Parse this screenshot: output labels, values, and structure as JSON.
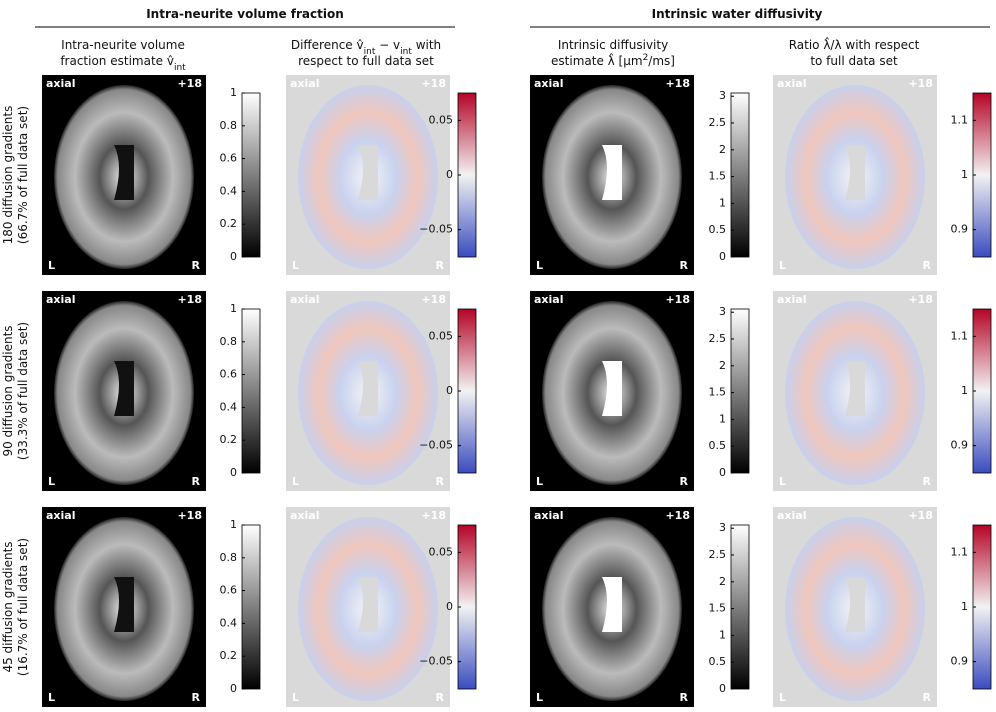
{
  "groups": [
    {
      "title": "Intra-neurite volume fraction"
    },
    {
      "title": "Intrinsic water diffusivity"
    }
  ],
  "columns": [
    {
      "header": [
        [
          {
            "text": "Intra-neurite volume"
          }
        ],
        [
          {
            "text": "fraction estimate v̂"
          },
          {
            "text": "int",
            "sub": true
          }
        ]
      ],
      "colorbar": {
        "scale": "gray",
        "lim": [
          0,
          1
        ],
        "ticks": [
          0,
          0.2,
          0.4,
          0.6,
          0.8,
          1
        ]
      }
    },
    {
      "header": [
        [
          {
            "text": "Difference v̂"
          },
          {
            "text": "int",
            "sub": true
          },
          {
            "text": " − v"
          },
          {
            "text": "int",
            "sub": true
          },
          {
            "text": " with"
          }
        ],
        [
          {
            "text": "respect to full data set"
          }
        ]
      ],
      "colorbar": {
        "scale": "diverging",
        "lim": [
          -0.075,
          0.075
        ],
        "ticks": [
          {
            "value": -0.05,
            "label": "−0.05"
          },
          0,
          0.05
        ]
      }
    },
    {
      "header": [
        [
          {
            "text": "Intrinsic diffusivity"
          }
        ],
        [
          {
            "text": "estimate λ̂ [µm"
          },
          {
            "text": "2",
            "sup": true
          },
          {
            "text": "/ms]"
          }
        ]
      ],
      "colorbar": {
        "scale": "gray",
        "lim": [
          0,
          3.06
        ],
        "ticks": [
          0,
          0.5,
          1,
          1.5,
          2,
          2.5,
          3
        ]
      }
    },
    {
      "header": [
        [
          {
            "text": "Ratio λ̂/λ with respect"
          }
        ],
        [
          {
            "text": "to full data set"
          }
        ]
      ],
      "colorbar": {
        "scale": "diverging",
        "lim": [
          0.85,
          1.15
        ],
        "ticks": [
          0.9,
          1,
          1.1
        ]
      }
    }
  ],
  "rows": [
    {
      "label": [
        "180 diffusion gradients",
        "(66.7% of full data set)"
      ]
    },
    {
      "label": [
        "90 diffusion gradients",
        "(33.3% of full data set)"
      ]
    },
    {
      "label": [
        "45 diffusion gradients",
        "(16.7% of full data set)"
      ]
    }
  ],
  "image_labels": {
    "view": "axial",
    "slice": "+18",
    "left": "L",
    "right": "R"
  }
}
